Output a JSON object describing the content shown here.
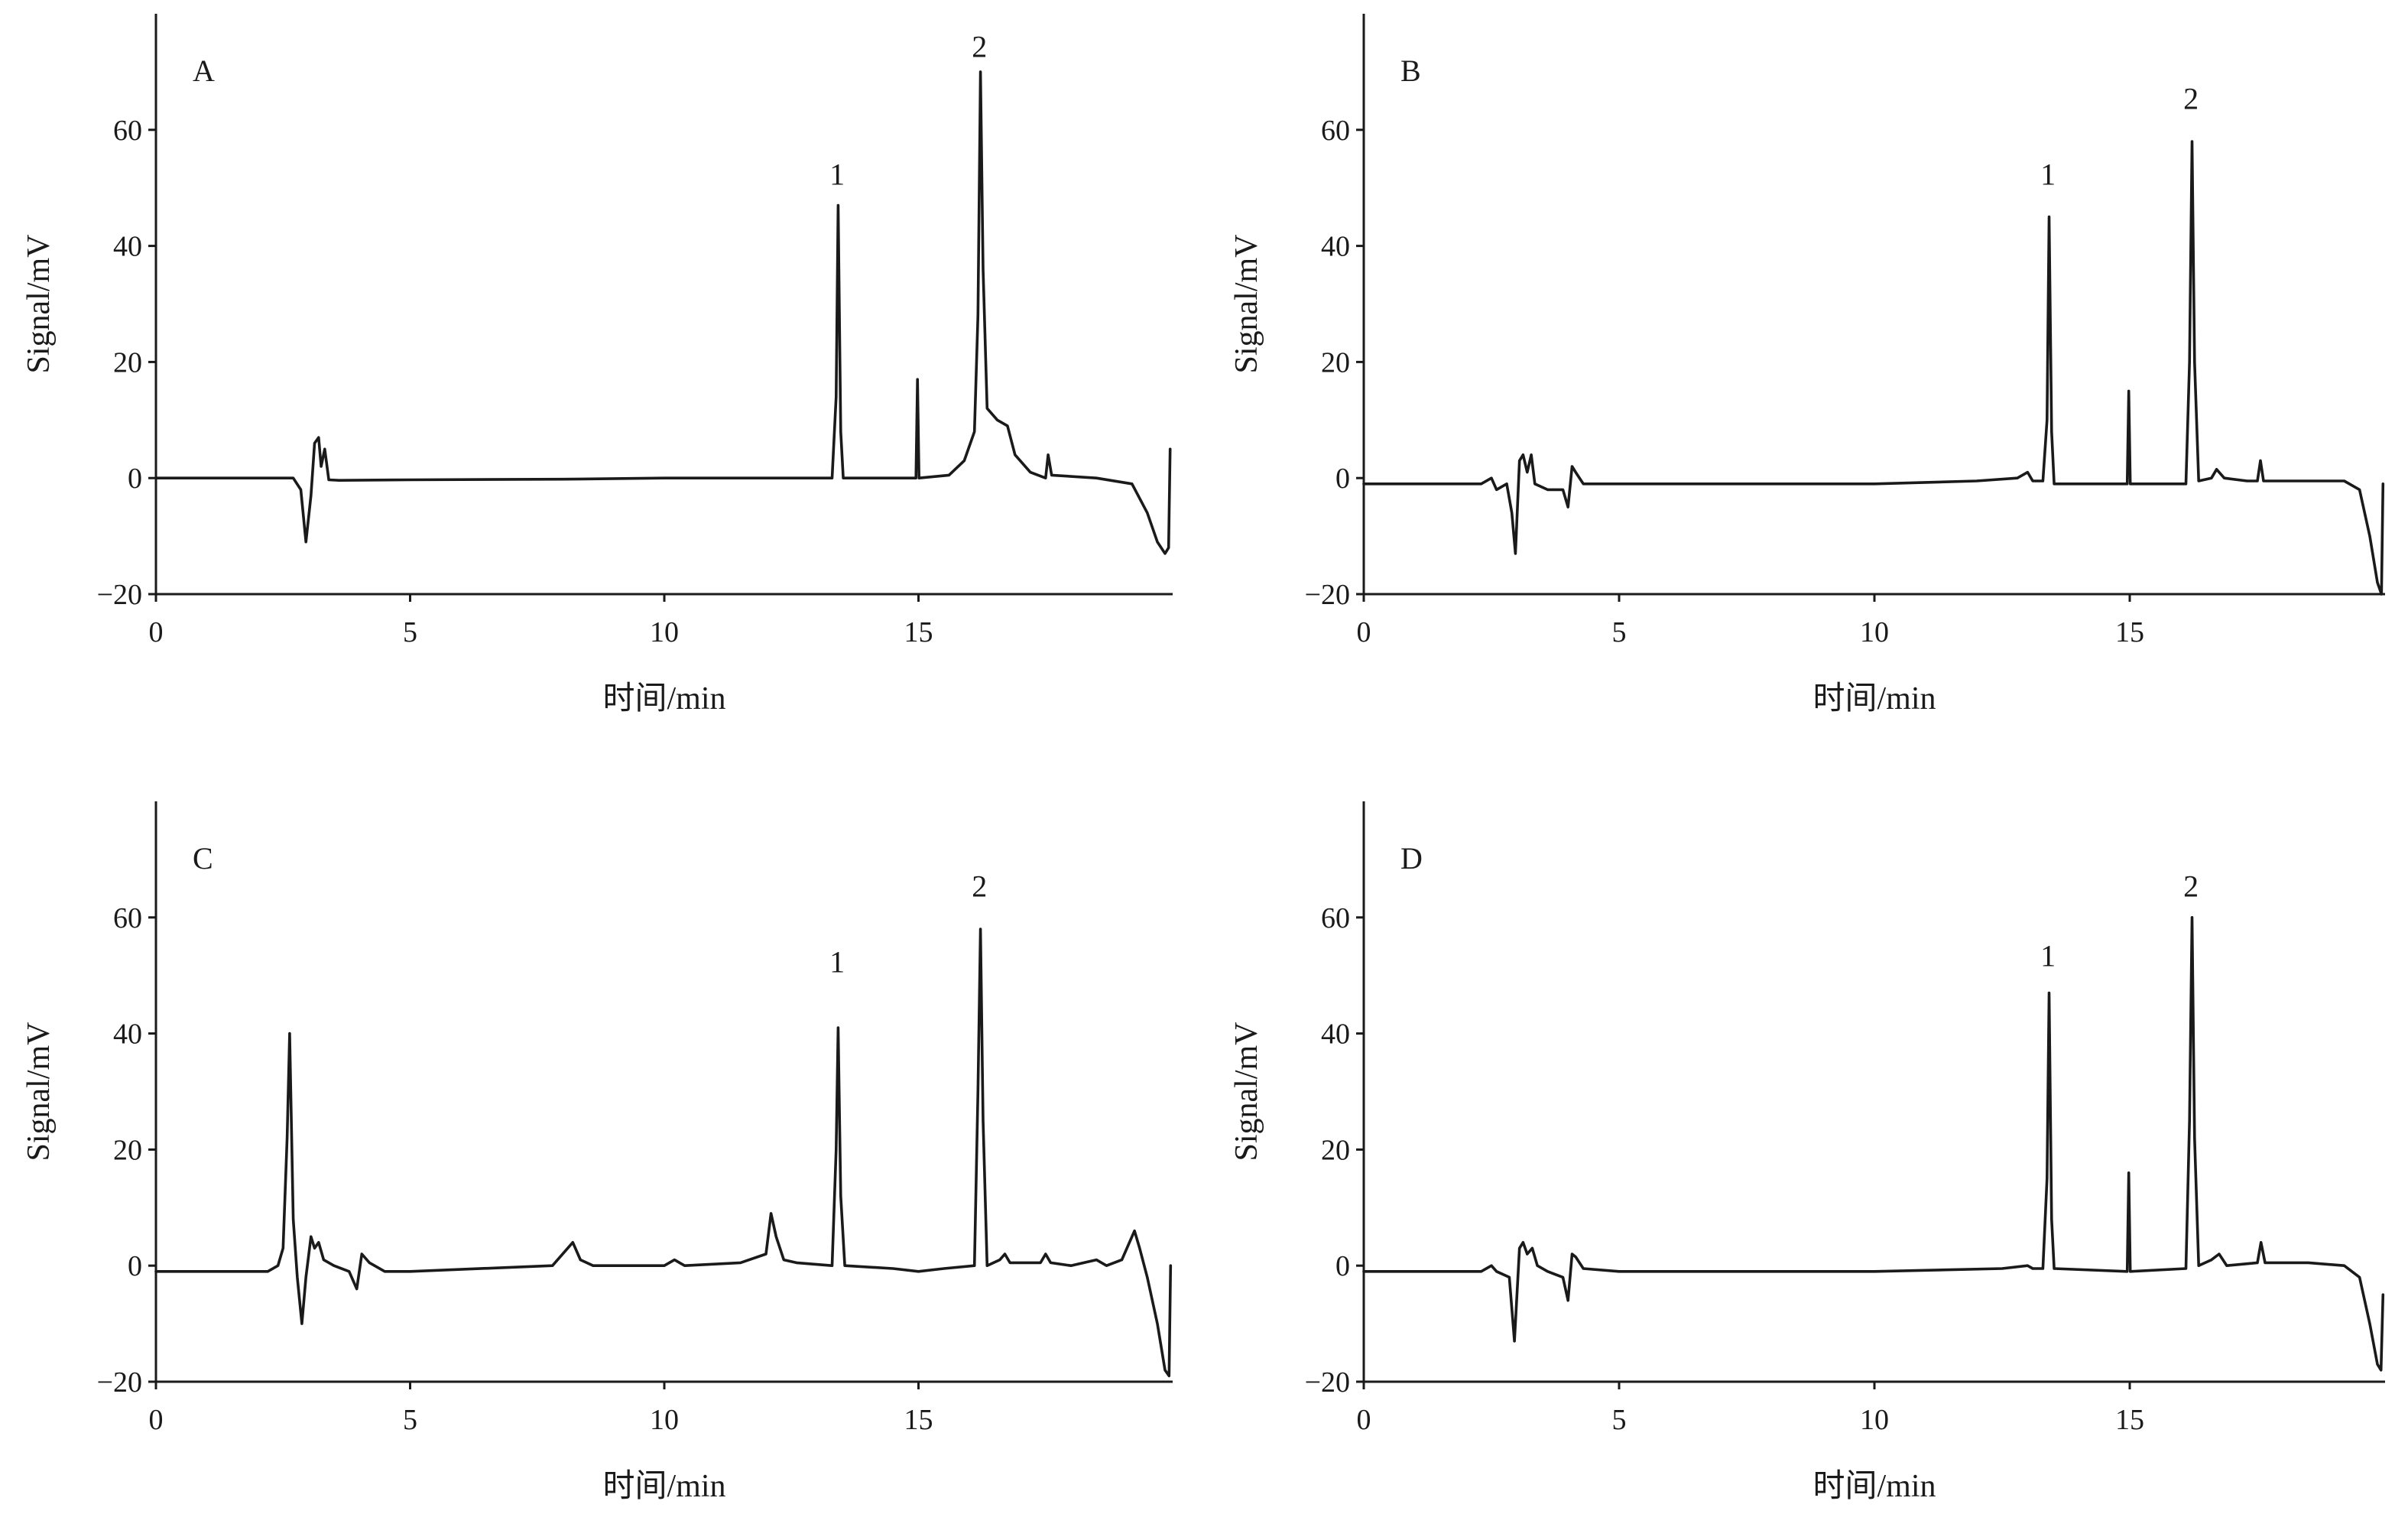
{
  "chart_data": [
    {
      "type": "line",
      "panel_label": "A",
      "xlabel": "时间/min",
      "ylabel": "Signal/mV",
      "xlim": [
        0,
        20
      ],
      "ylim": [
        -20,
        80
      ],
      "xticks": [
        0,
        5,
        10,
        15
      ],
      "yticks": [
        -20,
        0,
        20,
        40,
        60
      ],
      "peak_labels": [
        {
          "text": "1",
          "x": 13.4,
          "y": 49
        },
        {
          "text": "2",
          "x": 16.2,
          "y": 71
        }
      ],
      "series": [
        {
          "points": [
            [
              0,
              0
            ],
            [
              2.7,
              0
            ],
            [
              2.85,
              -2
            ],
            [
              2.95,
              -11
            ],
            [
              3.05,
              -3
            ],
            [
              3.12,
              6
            ],
            [
              3.2,
              7
            ],
            [
              3.25,
              2
            ],
            [
              3.32,
              5
            ],
            [
              3.4,
              -0.3
            ],
            [
              3.6,
              -0.4
            ],
            [
              5,
              -0.3
            ],
            [
              8,
              -0.2
            ],
            [
              10,
              0
            ],
            [
              12,
              0
            ],
            [
              13.3,
              0
            ],
            [
              13.38,
              14
            ],
            [
              13.42,
              47
            ],
            [
              13.47,
              8
            ],
            [
              13.52,
              0
            ],
            [
              14.95,
              0
            ],
            [
              14.98,
              17
            ],
            [
              15.01,
              0
            ],
            [
              15.6,
              0.5
            ],
            [
              15.9,
              3
            ],
            [
              16.1,
              8
            ],
            [
              16.17,
              28
            ],
            [
              16.22,
              70
            ],
            [
              16.27,
              36
            ],
            [
              16.35,
              12
            ],
            [
              16.55,
              10
            ],
            [
              16.75,
              9
            ],
            [
              16.9,
              4
            ],
            [
              17.2,
              1
            ],
            [
              17.5,
              0
            ],
            [
              17.55,
              4
            ],
            [
              17.62,
              0.5
            ],
            [
              18.5,
              0
            ],
            [
              19.2,
              -1
            ],
            [
              19.5,
              -6
            ],
            [
              19.7,
              -11
            ],
            [
              19.85,
              -13
            ],
            [
              19.92,
              -12
            ],
            [
              19.95,
              5
            ]
          ]
        }
      ]
    },
    {
      "type": "line",
      "panel_label": "B",
      "xlabel": "时间/min",
      "ylabel": "Signal/mV",
      "xlim": [
        0,
        20
      ],
      "ylim": [
        -20,
        80
      ],
      "xticks": [
        0,
        5,
        10,
        15
      ],
      "yticks": [
        -20,
        0,
        20,
        40,
        60
      ],
      "peak_labels": [
        {
          "text": "1",
          "x": 13.4,
          "y": 49
        },
        {
          "text": "2",
          "x": 16.2,
          "y": 62
        }
      ],
      "series": [
        {
          "points": [
            [
              0,
              -1
            ],
            [
              2.3,
              -1
            ],
            [
              2.5,
              0
            ],
            [
              2.6,
              -2
            ],
            [
              2.8,
              -1
            ],
            [
              2.9,
              -6
            ],
            [
              2.97,
              -13
            ],
            [
              3.05,
              3
            ],
            [
              3.12,
              4
            ],
            [
              3.2,
              1
            ],
            [
              3.28,
              4
            ],
            [
              3.35,
              -1
            ],
            [
              3.6,
              -2
            ],
            [
              3.9,
              -2
            ],
            [
              4.0,
              -5
            ],
            [
              4.08,
              2
            ],
            [
              4.15,
              1
            ],
            [
              4.3,
              -1
            ],
            [
              5,
              -1
            ],
            [
              8,
              -1
            ],
            [
              10,
              -1
            ],
            [
              12,
              -0.5
            ],
            [
              12.8,
              0
            ],
            [
              13.0,
              1
            ],
            [
              13.1,
              -0.5
            ],
            [
              13.3,
              -0.5
            ],
            [
              13.38,
              10
            ],
            [
              13.42,
              45
            ],
            [
              13.47,
              8
            ],
            [
              13.52,
              -1
            ],
            [
              14.95,
              -1
            ],
            [
              14.98,
              15
            ],
            [
              15.01,
              -1
            ],
            [
              16.1,
              -1
            ],
            [
              16.17,
              20
            ],
            [
              16.22,
              58
            ],
            [
              16.27,
              20
            ],
            [
              16.35,
              -0.5
            ],
            [
              16.6,
              0
            ],
            [
              16.7,
              1.5
            ],
            [
              16.85,
              0
            ],
            [
              17.3,
              -0.5
            ],
            [
              17.5,
              -0.5
            ],
            [
              17.56,
              3
            ],
            [
              17.62,
              -0.5
            ],
            [
              18.5,
              -0.5
            ],
            [
              19.2,
              -0.5
            ],
            [
              19.5,
              -2
            ],
            [
              19.7,
              -10
            ],
            [
              19.85,
              -18
            ],
            [
              19.93,
              -20
            ],
            [
              19.96,
              -1
            ]
          ]
        }
      ]
    },
    {
      "type": "line",
      "panel_label": "C",
      "xlabel": "时间/min",
      "ylabel": "Signal/mV",
      "xlim": [
        0,
        20
      ],
      "ylim": [
        -20,
        80
      ],
      "xticks": [
        0,
        5,
        10,
        15
      ],
      "yticks": [
        -20,
        0,
        20,
        40,
        60
      ],
      "peak_labels": [
        {
          "text": "1",
          "x": 13.4,
          "y": 49
        },
        {
          "text": "2",
          "x": 16.2,
          "y": 62
        }
      ],
      "series": [
        {
          "points": [
            [
              0,
              -1
            ],
            [
              2.2,
              -1
            ],
            [
              2.4,
              0
            ],
            [
              2.5,
              3
            ],
            [
              2.58,
              22
            ],
            [
              2.63,
              40
            ],
            [
              2.7,
              8
            ],
            [
              2.78,
              -2
            ],
            [
              2.87,
              -10
            ],
            [
              2.95,
              -2
            ],
            [
              3.05,
              5
            ],
            [
              3.12,
              3
            ],
            [
              3.2,
              4
            ],
            [
              3.3,
              1
            ],
            [
              3.5,
              0
            ],
            [
              3.8,
              -1
            ],
            [
              3.95,
              -4
            ],
            [
              4.05,
              2
            ],
            [
              4.2,
              0.5
            ],
            [
              4.5,
              -1
            ],
            [
              5,
              -1
            ],
            [
              7.8,
              0
            ],
            [
              8.1,
              3
            ],
            [
              8.2,
              4
            ],
            [
              8.35,
              1
            ],
            [
              8.6,
              0
            ],
            [
              10,
              0
            ],
            [
              10.2,
              1
            ],
            [
              10.4,
              0
            ],
            [
              11.5,
              0.5
            ],
            [
              12.0,
              2
            ],
            [
              12.1,
              9
            ],
            [
              12.2,
              5
            ],
            [
              12.35,
              1
            ],
            [
              12.6,
              0.5
            ],
            [
              13.3,
              0
            ],
            [
              13.38,
              20
            ],
            [
              13.42,
              41
            ],
            [
              13.47,
              12
            ],
            [
              13.55,
              0
            ],
            [
              14.5,
              -0.5
            ],
            [
              15,
              -1
            ],
            [
              15.5,
              -0.5
            ],
            [
              16.1,
              0
            ],
            [
              16.17,
              30
            ],
            [
              16.22,
              58
            ],
            [
              16.27,
              25
            ],
            [
              16.35,
              0
            ],
            [
              16.6,
              1
            ],
            [
              16.7,
              2
            ],
            [
              16.8,
              0.5
            ],
            [
              17.4,
              0.5
            ],
            [
              17.5,
              2
            ],
            [
              17.6,
              0.5
            ],
            [
              18,
              0
            ],
            [
              18.5,
              1
            ],
            [
              18.7,
              0
            ],
            [
              19.0,
              1
            ],
            [
              19.25,
              6
            ],
            [
              19.35,
              3
            ],
            [
              19.5,
              -2
            ],
            [
              19.7,
              -10
            ],
            [
              19.85,
              -18
            ],
            [
              19.93,
              -19
            ],
            [
              19.96,
              0
            ]
          ]
        }
      ]
    },
    {
      "type": "line",
      "panel_label": "D",
      "xlabel": "时间/min",
      "ylabel": "Signal/mV",
      "xlim": [
        0,
        20
      ],
      "ylim": [
        -20,
        80
      ],
      "xticks": [
        0,
        5,
        10,
        15
      ],
      "yticks": [
        -20,
        0,
        20,
        40,
        60
      ],
      "peak_labels": [
        {
          "text": "1",
          "x": 13.4,
          "y": 50
        },
        {
          "text": "2",
          "x": 16.2,
          "y": 62
        }
      ],
      "series": [
        {
          "points": [
            [
              0,
              -1
            ],
            [
              2.3,
              -1
            ],
            [
              2.5,
              0
            ],
            [
              2.6,
              -1
            ],
            [
              2.85,
              -2
            ],
            [
              2.95,
              -13
            ],
            [
              3.05,
              3
            ],
            [
              3.12,
              4
            ],
            [
              3.2,
              2
            ],
            [
              3.3,
              3
            ],
            [
              3.4,
              0
            ],
            [
              3.6,
              -1
            ],
            [
              3.9,
              -2
            ],
            [
              4.0,
              -6
            ],
            [
              4.08,
              2
            ],
            [
              4.15,
              1.5
            ],
            [
              4.3,
              -0.5
            ],
            [
              5,
              -1
            ],
            [
              8,
              -1
            ],
            [
              10,
              -1
            ],
            [
              12.5,
              -0.5
            ],
            [
              13.0,
              0
            ],
            [
              13.1,
              -0.5
            ],
            [
              13.3,
              -0.5
            ],
            [
              13.38,
              15
            ],
            [
              13.42,
              47
            ],
            [
              13.47,
              8
            ],
            [
              13.52,
              -0.5
            ],
            [
              14.95,
              -1
            ],
            [
              14.98,
              16
            ],
            [
              15.01,
              -1
            ],
            [
              16.1,
              -0.5
            ],
            [
              16.17,
              25
            ],
            [
              16.22,
              60
            ],
            [
              16.27,
              22
            ],
            [
              16.35,
              0
            ],
            [
              16.6,
              1
            ],
            [
              16.75,
              2
            ],
            [
              16.9,
              0
            ],
            [
              17.5,
              0.5
            ],
            [
              17.57,
              4
            ],
            [
              17.65,
              0.5
            ],
            [
              18.5,
              0.5
            ],
            [
              19.2,
              0
            ],
            [
              19.5,
              -2
            ],
            [
              19.7,
              -10
            ],
            [
              19.85,
              -17
            ],
            [
              19.92,
              -18
            ],
            [
              19.96,
              -5
            ]
          ]
        }
      ]
    }
  ]
}
